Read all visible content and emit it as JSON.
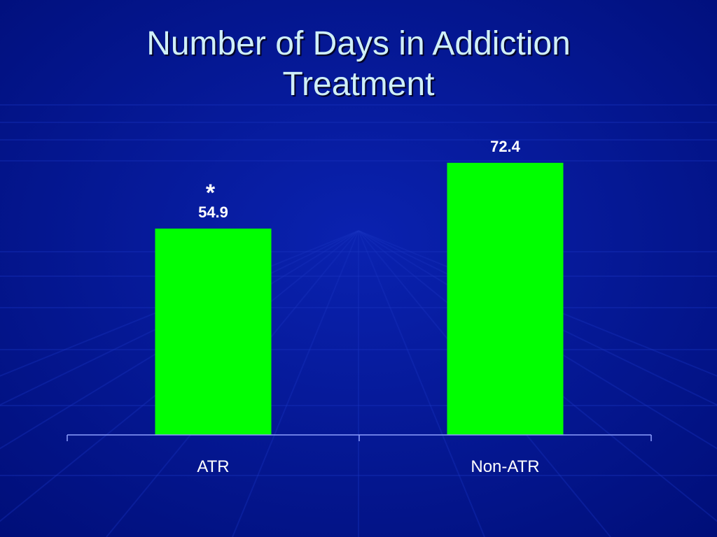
{
  "title": [
    "Number of Days in Addiction",
    "Treatment"
  ],
  "colors": {
    "background": "#00128a",
    "bar": "#00ff00",
    "axis": "#8ea0ff",
    "text": "#ffffff",
    "title": "#cfeff8"
  },
  "chart_data": {
    "type": "bar",
    "categories": [
      "ATR",
      "Non-ATR"
    ],
    "values": [
      54.9,
      72.4
    ],
    "data_labels": [
      "54.9",
      "72.4"
    ],
    "annotations": [
      {
        "category": "ATR",
        "text": "*"
      }
    ],
    "ylim": [
      0,
      80
    ],
    "grid": false,
    "legend": "none"
  }
}
